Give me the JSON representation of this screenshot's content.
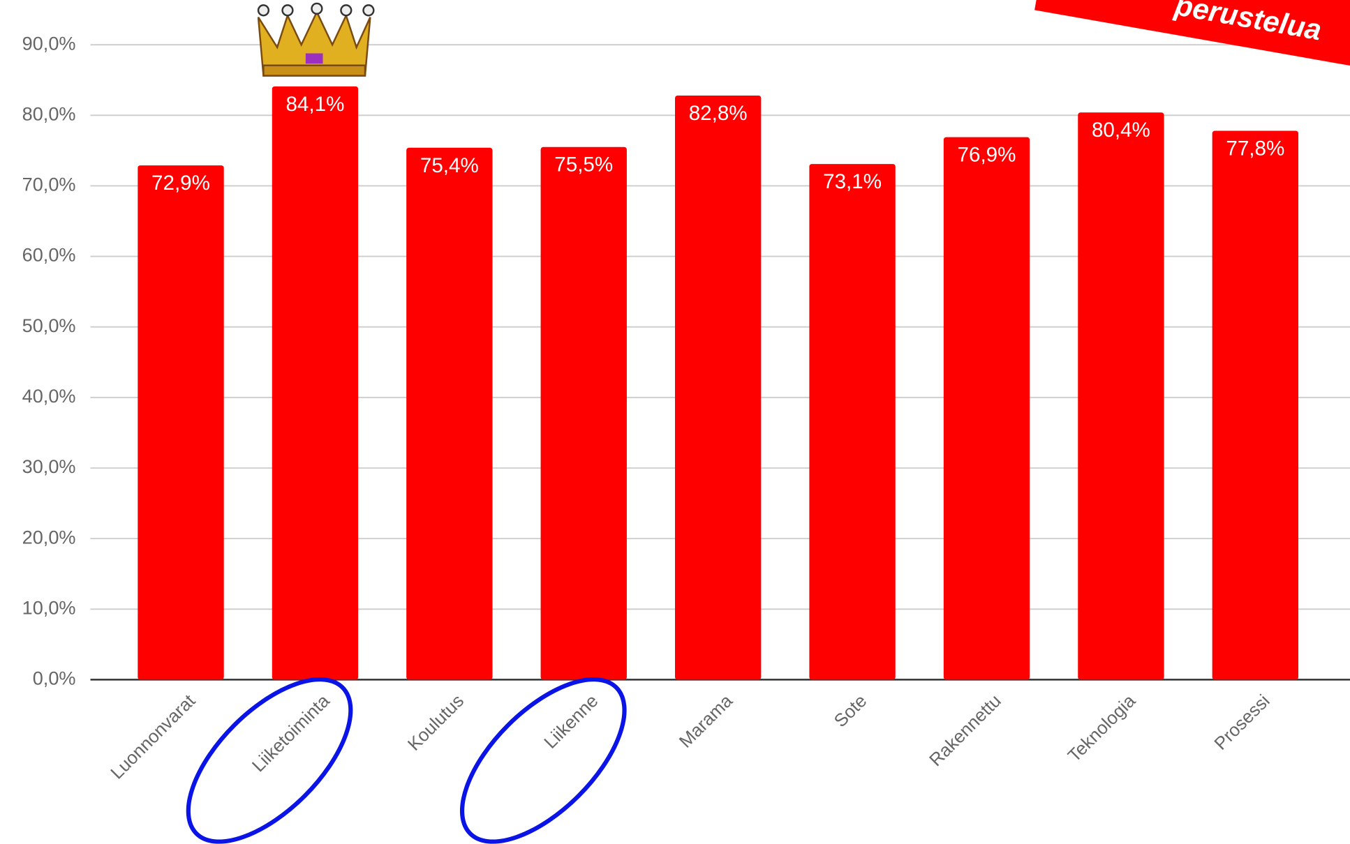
{
  "chart_data": {
    "type": "bar",
    "categories": [
      "Luonnonvarat",
      "Liiketoiminta",
      "Koulutus",
      "Liikenne",
      "Marama",
      "Sote",
      "Rakennettu",
      "Teknologia",
      "Prosessi"
    ],
    "values": [
      72.9,
      84.1,
      75.4,
      75.5,
      82.8,
      73.1,
      76.9,
      80.4,
      77.8
    ],
    "value_labels": [
      "72,9%",
      "84,1%",
      "75,4%",
      "75,5%",
      "82,8%",
      "73,1%",
      "76,9%",
      "80,4%",
      "77,8%"
    ],
    "color": "#ff0000",
    "ylim": [
      0,
      96
    ],
    "yticks": [
      {
        "value": 0,
        "label": "0,0%"
      },
      {
        "value": 10,
        "label": "10,0%"
      },
      {
        "value": 20,
        "label": "20,0%"
      },
      {
        "value": 30,
        "label": "30,0%"
      },
      {
        "value": 40,
        "label": "40,0%"
      },
      {
        "value": 50,
        "label": "50,0%"
      },
      {
        "value": 60,
        "label": "60,0%"
      },
      {
        "value": 70,
        "label": "70,0%"
      },
      {
        "value": 80,
        "label": "80,0%"
      },
      {
        "value": 90,
        "label": "90,0%"
      }
    ],
    "grid": true,
    "annotation": "perustelua"
  }
}
